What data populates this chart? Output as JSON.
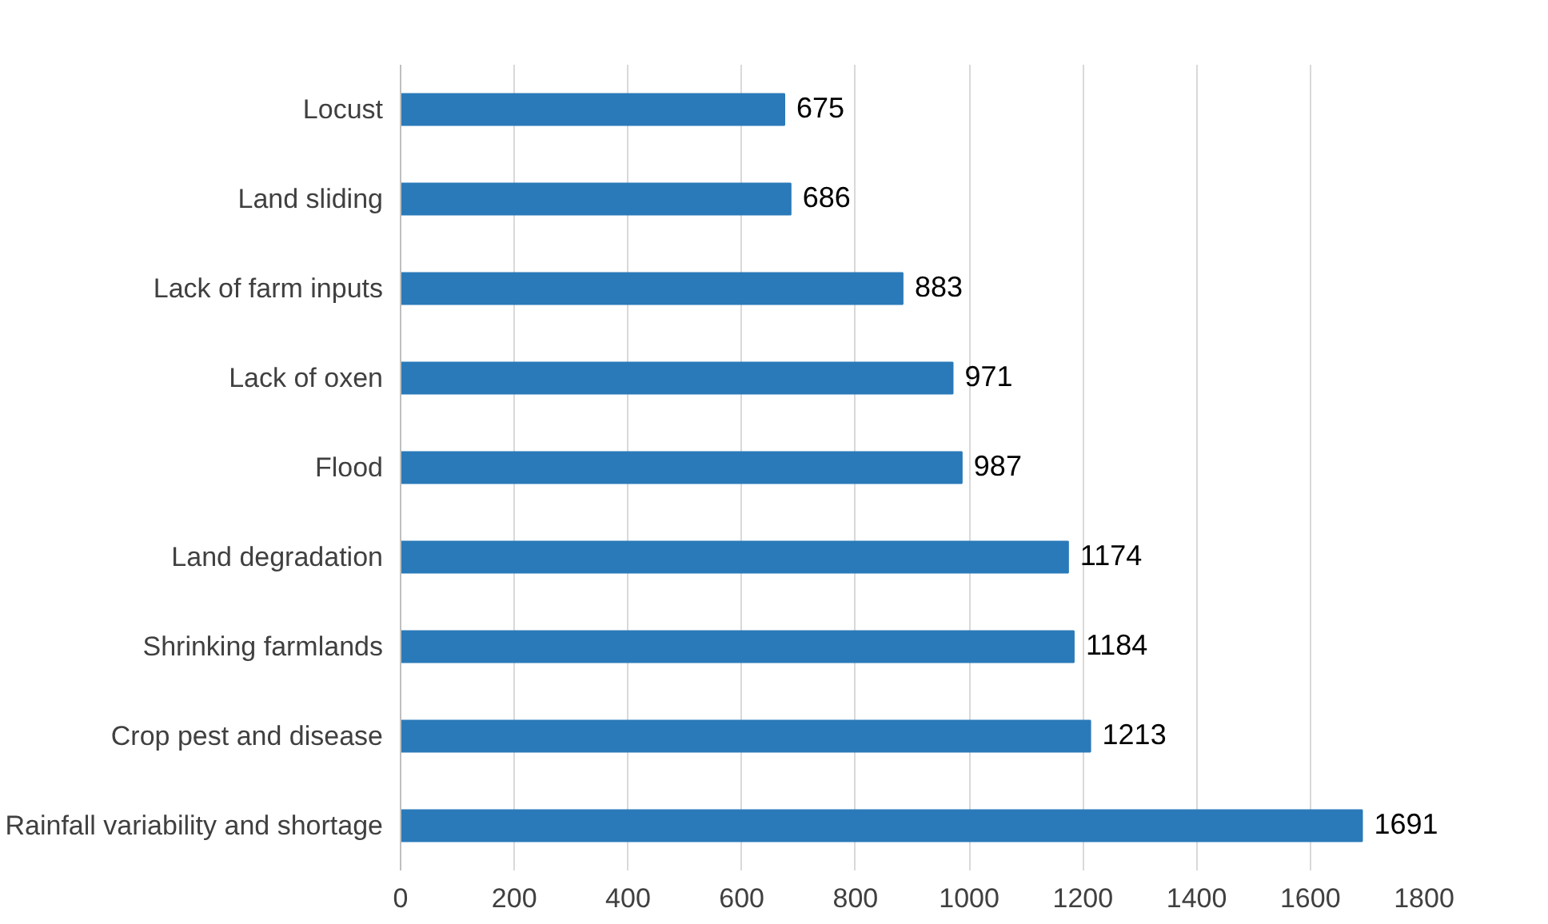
{
  "chart_data": {
    "type": "bar",
    "orientation": "horizontal",
    "categories": [
      "Locust",
      "Land sliding",
      "Lack of farm inputs",
      "Lack of oxen",
      "Flood",
      "Land degradation",
      "Shrinking farmlands",
      "Crop pest and disease",
      "Rainfall variability and shortage"
    ],
    "values": [
      675,
      686,
      883,
      971,
      987,
      1174,
      1184,
      1213,
      1691
    ],
    "color": "#2a7ab9",
    "xlim": [
      0,
      1800
    ],
    "xticks": [
      0,
      200,
      400,
      600,
      800,
      1000,
      1200,
      1400,
      1600,
      1800
    ],
    "grid": "x",
    "data_labels": true
  }
}
